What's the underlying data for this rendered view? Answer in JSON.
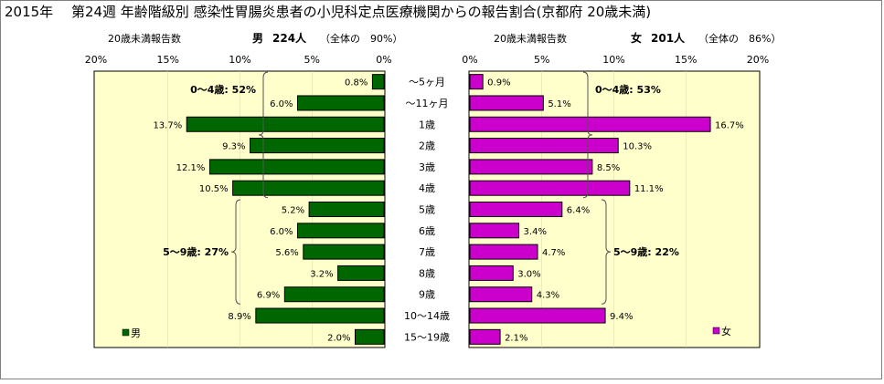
{
  "title": "2015年　 第24週 年齢階級別 感染性胃腸炎患者の小児科定点医療機関からの報告割合(京都府 20歳未満)",
  "chart_data": {
    "type": "bar",
    "orientation": "horizontal",
    "layout": "back-to-back (population pyramid)",
    "categories": [
      "～5ヶ月",
      "～11ヶ月",
      "1歳",
      "2歳",
      "3歳",
      "4歳",
      "5歳",
      "6歳",
      "7歳",
      "8歳",
      "9歳",
      "10～14歳",
      "15～19歳"
    ],
    "unit": "%",
    "panels": [
      {
        "side": "left",
        "header_label": "20歳未満報告数",
        "header_sex": "男",
        "header_count": "224人",
        "header_share": "（全体の　90%）",
        "legend": "男",
        "color": "#006600",
        "xlim": [
          0,
          20
        ],
        "axis_reversed": true,
        "ticks": [
          "20%",
          "15%",
          "10%",
          "5%",
          "0%"
        ],
        "values": [
          0.8,
          6.0,
          13.7,
          9.3,
          12.1,
          10.5,
          5.2,
          6.0,
          5.6,
          3.2,
          6.9,
          8.9,
          2.0
        ],
        "labels": [
          "0.8%",
          "6.0%",
          "13.7%",
          "9.3%",
          "12.1%",
          "10.5%",
          "5.2%",
          "6.0%",
          "5.6%",
          "3.2%",
          "6.9%",
          "8.9%",
          "2.0%"
        ],
        "annotations": [
          {
            "text": "0～4歳: 52%",
            "from": 0,
            "to": 5
          },
          {
            "text": "5～9歳: 27%",
            "from": 6,
            "to": 10
          }
        ]
      },
      {
        "side": "right",
        "header_label": "20歳未満報告数",
        "header_sex": "女",
        "header_count": "201人",
        "header_share": "（全体の　86%）",
        "legend": "女",
        "color": "#CC00CC",
        "xlim": [
          0,
          20
        ],
        "axis_reversed": false,
        "ticks": [
          "0%",
          "5%",
          "10%",
          "15%",
          "20%"
        ],
        "values": [
          0.9,
          5.1,
          16.7,
          10.3,
          8.5,
          11.1,
          6.4,
          3.4,
          4.7,
          3.0,
          4.3,
          9.4,
          2.1
        ],
        "labels": [
          "0.9%",
          "5.1%",
          "16.7%",
          "10.3%",
          "8.5%",
          "11.1%",
          "6.4%",
          "3.4%",
          "4.7%",
          "3.0%",
          "4.3%",
          "9.4%",
          "2.1%"
        ],
        "annotations": [
          {
            "text": "0～4歳: 53%",
            "from": 0,
            "to": 5
          },
          {
            "text": "5～9歳: 22%",
            "from": 6,
            "to": 10
          }
        ]
      }
    ],
    "colors": {
      "plot_background": "#FFFFCC",
      "border": "#000000"
    }
  }
}
